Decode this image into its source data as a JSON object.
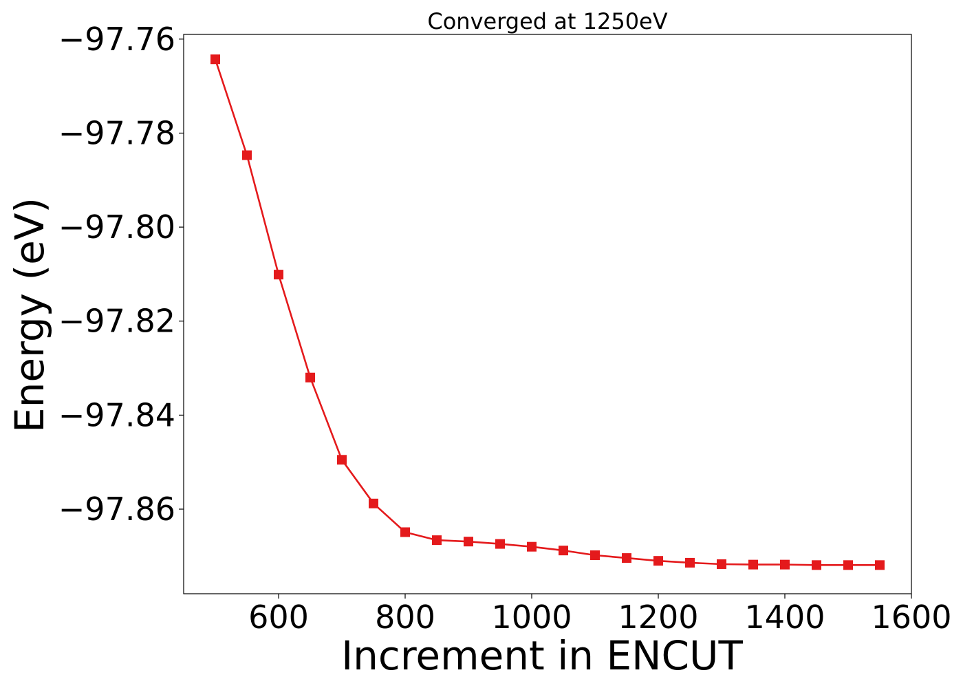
{
  "chart_data": {
    "type": "line",
    "title": "Converged at 1250eV",
    "xlabel": "Increment in ENCUT",
    "ylabel": "Energy (eV)",
    "xlim": [
      450,
      1600
    ],
    "ylim": [
      -97.878,
      -97.759
    ],
    "x_ticks": [
      600,
      800,
      1000,
      1200,
      1400,
      1600
    ],
    "x_tick_labels": [
      "600",
      "800",
      "1000",
      "1200",
      "1400",
      "1600"
    ],
    "y_ticks": [
      -97.76,
      -97.78,
      -97.8,
      -97.82,
      -97.84,
      -97.86
    ],
    "y_tick_labels": [
      "−97.76",
      "−97.78",
      "−97.80",
      "−97.82",
      "−97.84",
      "−97.86"
    ],
    "grid": false,
    "series": [
      {
        "marker": "square",
        "color": "#e41a1c",
        "x": [
          500,
          550,
          600,
          650,
          700,
          750,
          800,
          850,
          900,
          950,
          1000,
          1050,
          1100,
          1150,
          1200,
          1250,
          1300,
          1350,
          1400,
          1450,
          1500,
          1550
        ],
        "y": [
          -97.7643,
          -97.7847,
          -97.8101,
          -97.832,
          -97.8495,
          -97.8588,
          -97.8649,
          -97.8666,
          -97.8669,
          -97.8674,
          -97.868,
          -97.8688,
          -97.8698,
          -97.8704,
          -97.871,
          -97.8714,
          -97.8717,
          -97.8718,
          -97.8718,
          -97.8719,
          -97.8719,
          -97.8719
        ]
      }
    ]
  }
}
